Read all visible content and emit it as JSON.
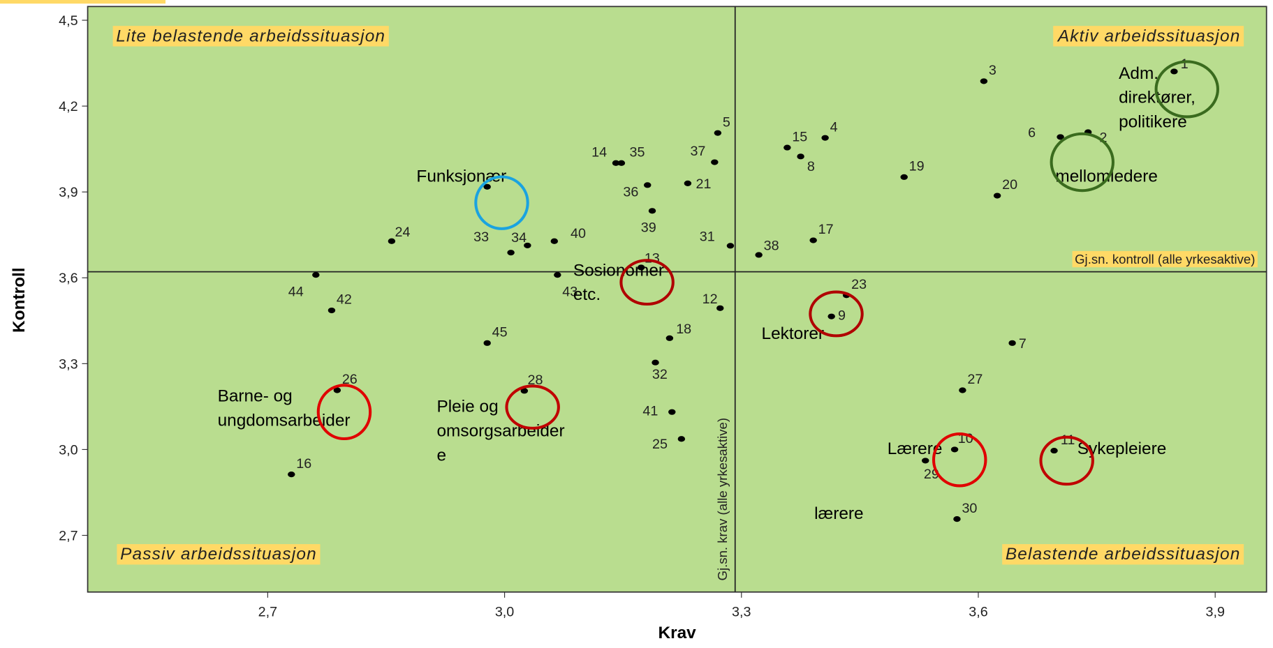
{
  "chart_data": {
    "type": "scatter",
    "x_label": "Krav",
    "y_label": "Kontroll",
    "xlim": [
      2.472,
      3.965
    ],
    "ylim": [
      2.502,
      4.548
    ],
    "xticks": [
      {
        "value": 2.7,
        "label": "2,7"
      },
      {
        "value": 3.0,
        "label": "3,0"
      },
      {
        "value": 3.3,
        "label": "3,3"
      },
      {
        "value": 3.6,
        "label": "3,6"
      },
      {
        "value": 3.9,
        "label": "3,9"
      }
    ],
    "yticks": [
      {
        "value": 2.7,
        "label": "2,7"
      },
      {
        "value": 3.0,
        "label": "3,0"
      },
      {
        "value": 3.3,
        "label": "3,3"
      },
      {
        "value": 3.6,
        "label": "3,6"
      },
      {
        "value": 3.9,
        "label": "3,9"
      },
      {
        "value": 4.2,
        "label": "4,2"
      },
      {
        "value": 4.5,
        "label": "4,5"
      }
    ],
    "background": "#b9dd8f",
    "point_color": "#000000",
    "reference_lines": {
      "x": 3.292,
      "x_label": "Gj.sn. krav (alle yrkesaktive)",
      "y": 3.621,
      "y_label": "Gj.sn. kontroll (alle yrkesaktive)"
    },
    "series": [
      {
        "name": null,
        "labels": [
          "1",
          "3",
          "5",
          "15",
          "4",
          "8",
          "14",
          "35",
          "37",
          "36",
          "21",
          "39",
          "31",
          "38",
          "17",
          "19",
          "20",
          "6",
          "2",
          null,
          "24",
          "34",
          "33",
          "40",
          "13",
          "43",
          "44",
          "42",
          "12",
          "23",
          "9",
          "45",
          "18",
          "7",
          "32",
          "26",
          "28",
          "27",
          "41",
          "25",
          "10",
          "29",
          "11",
          "16",
          "30"
        ],
        "x": [
          3.848,
          3.607,
          3.27,
          3.358,
          3.406,
          3.375,
          3.141,
          3.148,
          3.266,
          3.181,
          3.232,
          3.187,
          3.286,
          3.322,
          3.391,
          3.506,
          3.624,
          3.704,
          3.739,
          2.978,
          2.857,
          3.029,
          3.008,
          3.063,
          3.173,
          3.067,
          2.761,
          2.781,
          3.273,
          3.433,
          3.414,
          2.978,
          3.209,
          3.643,
          3.191,
          2.788,
          3.025,
          3.58,
          3.212,
          3.224,
          3.57,
          3.533,
          3.696,
          2.73,
          3.573
        ],
        "y": [
          4.321,
          4.287,
          4.106,
          4.055,
          4.089,
          4.024,
          4.001,
          4.001,
          4.004,
          3.924,
          3.93,
          3.834,
          3.712,
          3.68,
          3.731,
          3.952,
          3.887,
          4.092,
          4.109,
          3.918,
          3.728,
          3.713,
          3.688,
          3.728,
          3.636,
          3.61,
          3.61,
          3.486,
          3.494,
          3.539,
          3.465,
          3.372,
          3.389,
          3.372,
          3.304,
          3.207,
          3.205,
          3.207,
          3.131,
          3.037,
          3.0,
          2.961,
          2.996,
          2.913,
          2.757
        ]
      }
    ],
    "quadrant_labels": [
      "Lite belastende arbeidssituasjon",
      "Aktiv arbeidssituasjon",
      "Passiv arbeidssituasjon",
      "Belastende arbeidssituasjon"
    ],
    "annotations": [
      [
        "Adm.",
        "direktører,",
        "politikere"
      ],
      [
        "mellomledere"
      ],
      [
        "Funksjonær"
      ],
      [
        "Sosionomer",
        "etc."
      ],
      [
        "Lektorer"
      ],
      [
        "Barne- og",
        "ungdomsarbeider"
      ],
      [
        "Pleie og",
        "omsorgsarbeider",
        "e"
      ],
      [
        "Lærere"
      ],
      [
        "Sykepleiere"
      ],
      [
        "lærere"
      ]
    ]
  }
}
